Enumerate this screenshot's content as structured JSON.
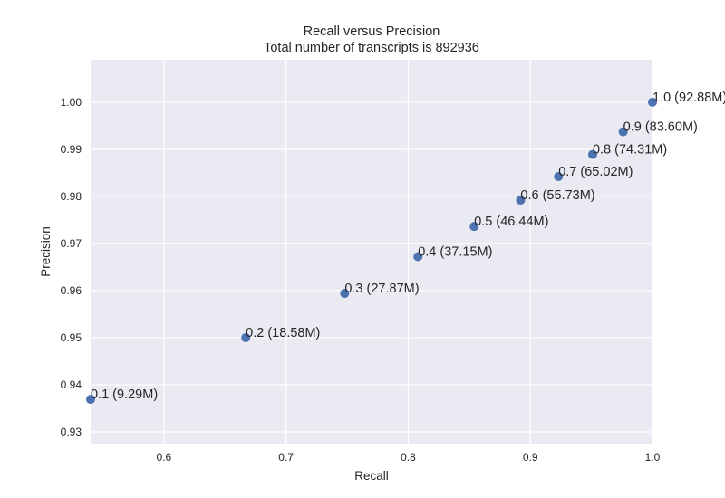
{
  "chart_data": {
    "type": "scatter",
    "title": "Recall versus Precision",
    "subtitle": "Total number of transcripts is 892936",
    "xlabel": "Recall",
    "ylabel": "Precision",
    "xlim": [
      0.54,
      1.0
    ],
    "ylim": [
      0.9275,
      1.009
    ],
    "xticks": [
      0.6,
      0.7,
      0.8,
      0.9,
      1.0
    ],
    "xtick_labels": [
      "0.6",
      "0.7",
      "0.8",
      "0.9",
      "1.0"
    ],
    "yticks": [
      0.93,
      0.94,
      0.95,
      0.96,
      0.97,
      0.98,
      0.99,
      1.0
    ],
    "ytick_labels": [
      "0.93",
      "0.94",
      "0.95",
      "0.96",
      "0.97",
      "0.98",
      "0.99",
      "1.00"
    ],
    "grid": true,
    "colors": {
      "marker": "#4c72b0",
      "background": "#eaeaf2",
      "grid": "#ffffff"
    },
    "points": [
      {
        "x": 0.54,
        "y": 0.9369,
        "label": "0.1 (9.29M)"
      },
      {
        "x": 0.667,
        "y": 0.95,
        "label": "0.2 (18.58M)"
      },
      {
        "x": 0.748,
        "y": 0.9594,
        "label": "0.3 (27.87M)"
      },
      {
        "x": 0.808,
        "y": 0.9672,
        "label": "0.4 (37.15M)"
      },
      {
        "x": 0.854,
        "y": 0.9736,
        "label": "0.5 (46.44M)"
      },
      {
        "x": 0.892,
        "y": 0.9792,
        "label": "0.6 (55.73M)"
      },
      {
        "x": 0.923,
        "y": 0.9842,
        "label": "0.7 (65.02M)"
      },
      {
        "x": 0.951,
        "y": 0.9889,
        "label": "0.8 (74.31M)"
      },
      {
        "x": 0.976,
        "y": 0.9937,
        "label": "0.9 (83.60M)"
      },
      {
        "x": 1.0,
        "y": 1.0,
        "label": "1.0 (92.88M)"
      }
    ]
  }
}
